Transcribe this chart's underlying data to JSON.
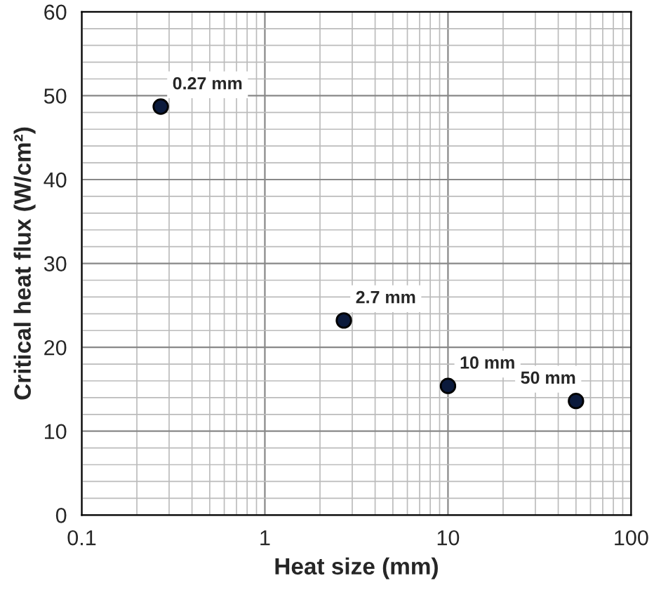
{
  "chart_data": {
    "type": "scatter",
    "xlabel": "Heat size (mm)",
    "ylabel": "Critical heat flux (W/cm²)",
    "x": [
      0.27,
      2.7,
      10,
      50
    ],
    "series": [
      {
        "color": "#0b1a3c",
        "values": [
          48.7,
          23.2,
          15.4,
          13.6
        ]
      }
    ],
    "annotations": [
      {
        "text": "0.27 mm",
        "x": 0.27,
        "y": 48.7
      },
      {
        "text": "2.7 mm",
        "x": 2.7,
        "y": 23.2
      },
      {
        "text": "10 mm",
        "x": 10,
        "y": 15.4
      },
      {
        "text": "50 mm",
        "x": 50,
        "y": 13.6
      }
    ],
    "log": "x",
    "xlim": [
      0.1,
      100
    ],
    "xticks": [
      0.1,
      1,
      10,
      100
    ],
    "ylim": [
      0,
      60
    ],
    "yticks": [
      0,
      10,
      20,
      30,
      40,
      50,
      60
    ],
    "grid": true,
    "marker": "circle",
    "legend": false
  }
}
